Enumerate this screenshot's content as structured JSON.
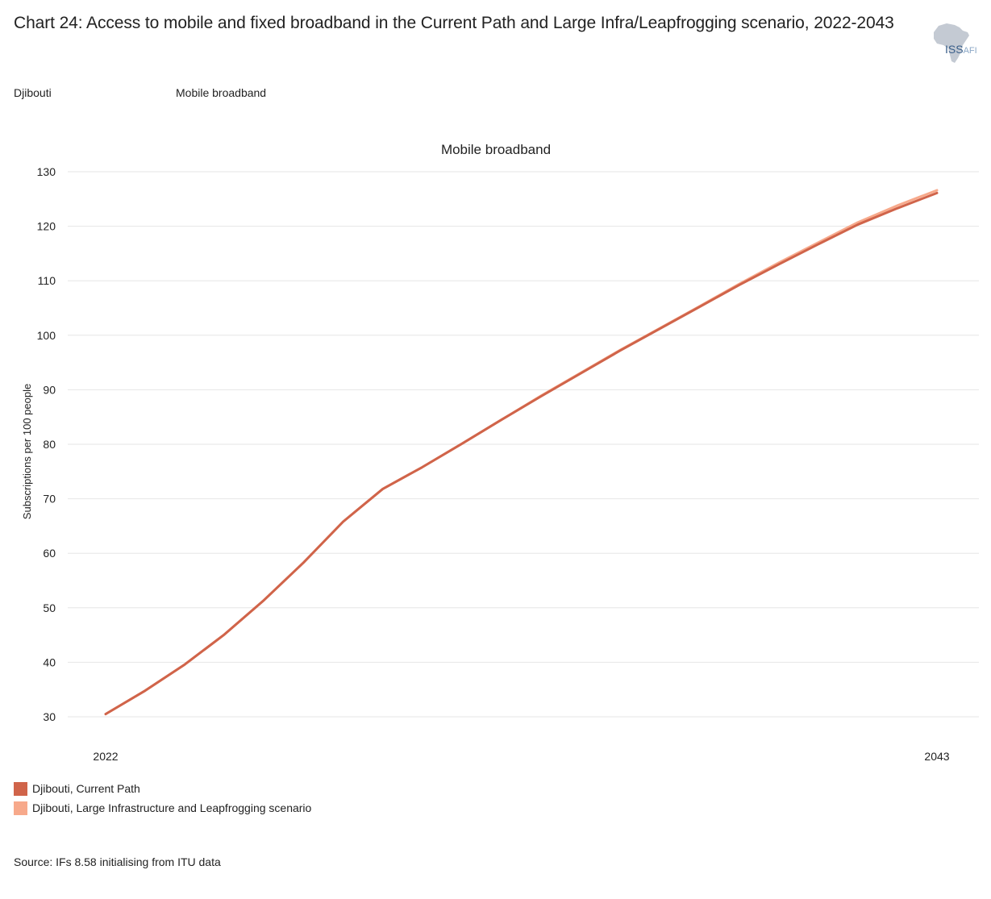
{
  "header": {
    "title": "Chart 24: Access to mobile and fixed broadband in the Current Path and Large Infra/Leapfrogging scenario, 2022-2043",
    "logo_main": "ISS",
    "logo_sub": "AFI"
  },
  "filters": {
    "country": "Djibouti",
    "metric": "Mobile broadband"
  },
  "colors": {
    "current_path": "#d0644a",
    "large_infra": "#f7a98b",
    "gridline": "#e6e6e6",
    "logo_map": "#c4cad3"
  },
  "chart_data": {
    "type": "line",
    "title": "Mobile broadband",
    "xlabel": "",
    "ylabel": "Subscriptions per 100 people",
    "xlim": [
      2022,
      2043
    ],
    "ylim": [
      30,
      130
    ],
    "x_tick_labels": [
      "2022",
      "2043"
    ],
    "y_ticks": [
      30,
      40,
      50,
      60,
      70,
      80,
      90,
      100,
      110,
      120,
      130
    ],
    "grid": true,
    "legend_position": "bottom-left",
    "x": [
      2022,
      2023,
      2024,
      2025,
      2026,
      2027,
      2028,
      2029,
      2030,
      2031,
      2032,
      2033,
      2034,
      2035,
      2036,
      2037,
      2038,
      2039,
      2040,
      2041,
      2042,
      2043
    ],
    "series": [
      {
        "name": "Djibouti, Current Path",
        "color": "#d0644a",
        "values": [
          30.5,
          34.8,
          39.6,
          45.1,
          51.4,
          58.3,
          65.8,
          71.8,
          75.8,
          80.1,
          84.5,
          88.8,
          93.0,
          97.2,
          101.2,
          105.2,
          109.2,
          113.0,
          116.7,
          120.3,
          123.3,
          126.1
        ]
      },
      {
        "name": "Djibouti, Large Infrastructure and Leapfrogging scenario",
        "color": "#f7a98b",
        "values": [
          30.5,
          34.8,
          39.6,
          45.1,
          51.4,
          58.3,
          65.8,
          71.8,
          75.8,
          80.1,
          84.5,
          88.9,
          93.1,
          97.3,
          101.3,
          105.3,
          109.4,
          113.3,
          117.0,
          120.7,
          123.8,
          126.6
        ]
      }
    ]
  },
  "footer": {
    "source": "Source: IFs 8.58 initialising from ITU data"
  }
}
